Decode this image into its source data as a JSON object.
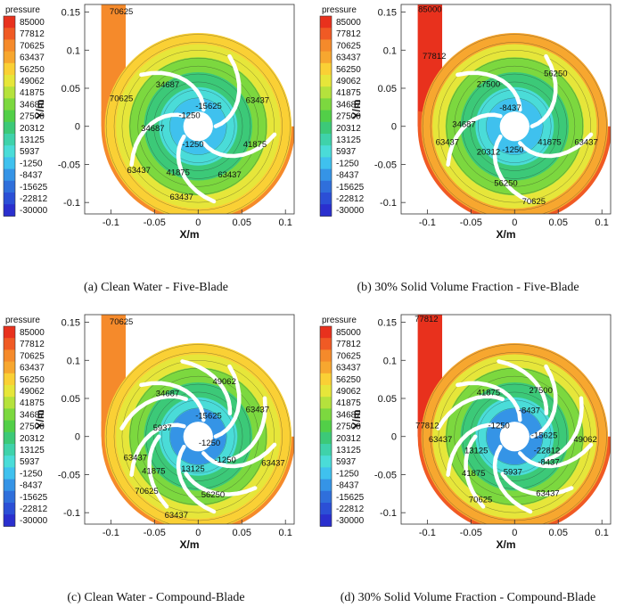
{
  "colorbar": {
    "title": "pressure",
    "levels": [
      "85000",
      "77812",
      "70625",
      "63437",
      "56250",
      "49062",
      "41875",
      "34687",
      "27500",
      "20312",
      "13125",
      "5937",
      "-1250",
      "-8437",
      "-15625",
      "-22812",
      "-30000"
    ],
    "colors": [
      "#e8311d",
      "#f05a24",
      "#f58a2b",
      "#f7a72f",
      "#fad035",
      "#e6e63a",
      "#b5e23c",
      "#7cd83f",
      "#52cf48",
      "#3cc978",
      "#3fd2aa",
      "#4adcd8",
      "#3fc1ee",
      "#3594e6",
      "#2f6fdb",
      "#2b4fd6",
      "#2a2fce"
    ]
  },
  "chart_data": [
    {
      "type": "contour",
      "title": "(a) Clean Water - Five-Blade",
      "xlabel": "X/m",
      "ylabel": "Y/m",
      "xlim": [
        -0.13,
        0.11
      ],
      "ylim": [
        -0.115,
        0.16
      ],
      "xticks": [
        "-0.1",
        "-0.05",
        "0",
        "0.05",
        "0.1"
      ],
      "yticks": [
        "0.15",
        "0.1",
        "0.05",
        "0",
        "-0.05",
        "-0.1"
      ],
      "colorbar_title": "pressure",
      "contour_labels": [
        {
          "text": "70625",
          "x": -0.088,
          "y": 0.151
        },
        {
          "text": "70625",
          "x": -0.088,
          "y": 0.037
        },
        {
          "text": "34687",
          "x": -0.035,
          "y": 0.055
        },
        {
          "text": "-15625",
          "x": 0.012,
          "y": 0.027
        },
        {
          "text": "63437",
          "x": 0.068,
          "y": 0.035
        },
        {
          "text": "-1250",
          "x": -0.01,
          "y": 0.015
        },
        {
          "text": "34687",
          "x": -0.052,
          "y": -0.002
        },
        {
          "text": "-1250",
          "x": -0.006,
          "y": -0.023
        },
        {
          "text": "41875",
          "x": 0.065,
          "y": -0.023
        },
        {
          "text": "63437",
          "x": -0.068,
          "y": -0.057
        },
        {
          "text": "41875",
          "x": -0.023,
          "y": -0.06
        },
        {
          "text": "63437",
          "x": 0.036,
          "y": -0.063
        },
        {
          "text": "63437",
          "x": -0.019,
          "y": -0.092
        }
      ]
    },
    {
      "type": "contour",
      "title": "(b) 30% Solid Volume Fraction - Five-Blade",
      "xlabel": "X/m",
      "ylabel": "Y/m",
      "xlim": [
        -0.13,
        0.11
      ],
      "ylim": [
        -0.115,
        0.16
      ],
      "xticks": [
        "-0.1",
        "-0.05",
        "0",
        "0.05",
        "0.1"
      ],
      "yticks": [
        "0.15",
        "0.1",
        "0.05",
        "0",
        "-0.05",
        "-0.1"
      ],
      "colorbar_title": "pressure",
      "contour_labels": [
        {
          "text": "85000",
          "x": -0.097,
          "y": 0.154
        },
        {
          "text": "77812",
          "x": -0.092,
          "y": 0.093
        },
        {
          "text": "27500",
          "x": -0.03,
          "y": 0.056
        },
        {
          "text": "56250",
          "x": 0.047,
          "y": 0.07
        },
        {
          "text": "-8437",
          "x": -0.005,
          "y": 0.025
        },
        {
          "text": "34687",
          "x": -0.058,
          "y": 0.003
        },
        {
          "text": "63437",
          "x": -0.077,
          "y": -0.02
        },
        {
          "text": "20312",
          "x": -0.03,
          "y": -0.033
        },
        {
          "text": "-1250",
          "x": -0.002,
          "y": -0.03
        },
        {
          "text": "41875",
          "x": 0.04,
          "y": -0.02
        },
        {
          "text": "63437",
          "x": 0.082,
          "y": -0.02
        },
        {
          "text": "56250",
          "x": -0.01,
          "y": -0.074
        },
        {
          "text": "70625",
          "x": 0.022,
          "y": -0.098
        }
      ]
    },
    {
      "type": "contour",
      "title": "(c) Clean Water - Compound-Blade",
      "xlabel": "X/m",
      "ylabel": "Y/m",
      "xlim": [
        -0.13,
        0.11
      ],
      "ylim": [
        -0.115,
        0.16
      ],
      "xticks": [
        "-0.1",
        "-0.05",
        "0",
        "0.05",
        "0.1"
      ],
      "yticks": [
        "0.15",
        "0.1",
        "0.05",
        "0",
        "-0.05",
        "-0.1"
      ],
      "colorbar_title": "pressure",
      "contour_labels": [
        {
          "text": "70625",
          "x": -0.088,
          "y": 0.151
        },
        {
          "text": "34687",
          "x": -0.035,
          "y": 0.057
        },
        {
          "text": "49062",
          "x": 0.03,
          "y": 0.073
        },
        {
          "text": "-15625",
          "x": 0.012,
          "y": 0.028
        },
        {
          "text": "63437",
          "x": 0.068,
          "y": 0.036
        },
        {
          "text": "5937",
          "x": -0.041,
          "y": 0.012
        },
        {
          "text": "-1250",
          "x": 0.013,
          "y": -0.008
        },
        {
          "text": "63437",
          "x": -0.072,
          "y": -0.027
        },
        {
          "text": "-1250",
          "x": 0.031,
          "y": -0.03
        },
        {
          "text": "41875",
          "x": -0.051,
          "y": -0.045
        },
        {
          "text": "13125",
          "x": -0.006,
          "y": -0.042
        },
        {
          "text": "63437",
          "x": 0.086,
          "y": -0.034
        },
        {
          "text": "70625",
          "x": -0.059,
          "y": -0.071
        },
        {
          "text": "56250",
          "x": 0.017,
          "y": -0.076
        },
        {
          "text": "63437",
          "x": -0.025,
          "y": -0.103
        }
      ]
    },
    {
      "type": "contour",
      "title": "(d) 30% Solid Volume Fraction - Compound-Blade",
      "xlabel": "X/m",
      "ylabel": "Y/m",
      "xlim": [
        -0.13,
        0.11
      ],
      "ylim": [
        -0.115,
        0.16
      ],
      "xticks": [
        "-0.1",
        "-0.05",
        "0",
        "0.05",
        "0.1"
      ],
      "yticks": [
        "0.15",
        "0.1",
        "0.05",
        "0",
        "-0.05",
        "-0.1"
      ],
      "colorbar_title": "pressure",
      "contour_labels": [
        {
          "text": "77812",
          "x": -0.101,
          "y": 0.155
        },
        {
          "text": "41875",
          "x": -0.03,
          "y": 0.058
        },
        {
          "text": "27500",
          "x": 0.03,
          "y": 0.061
        },
        {
          "text": "-8437",
          "x": 0.017,
          "y": 0.035
        },
        {
          "text": "77812",
          "x": -0.1,
          "y": 0.015
        },
        {
          "text": "-1250",
          "x": -0.018,
          "y": 0.015
        },
        {
          "text": "-15625",
          "x": 0.034,
          "y": 0.002
        },
        {
          "text": "63437",
          "x": -0.085,
          "y": -0.003
        },
        {
          "text": "49062",
          "x": 0.081,
          "y": -0.003
        },
        {
          "text": "13125",
          "x": -0.044,
          "y": -0.018
        },
        {
          "text": "-22812",
          "x": 0.037,
          "y": -0.018
        },
        {
          "text": "-8437",
          "x": 0.039,
          "y": -0.033
        },
        {
          "text": "41875",
          "x": -0.047,
          "y": -0.048
        },
        {
          "text": "5937",
          "x": -0.002,
          "y": -0.046
        },
        {
          "text": "70625",
          "x": -0.039,
          "y": -0.082
        },
        {
          "text": "63437",
          "x": 0.038,
          "y": -0.074
        }
      ]
    }
  ]
}
